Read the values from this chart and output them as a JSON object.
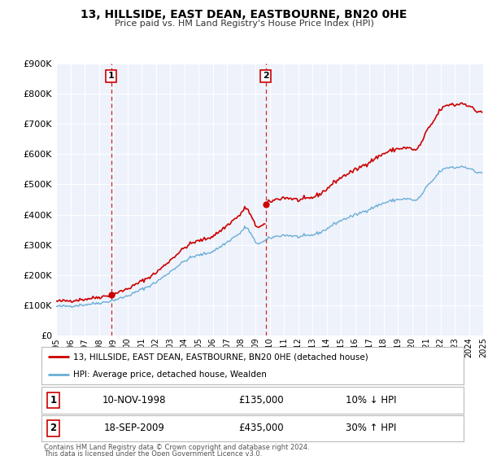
{
  "title": "13, HILLSIDE, EAST DEAN, EASTBOURNE, BN20 0HE",
  "subtitle": "Price paid vs. HM Land Registry's House Price Index (HPI)",
  "legend_line1": "13, HILLSIDE, EAST DEAN, EASTBOURNE, BN20 0HE (detached house)",
  "legend_line2": "HPI: Average price, detached house, Wealden",
  "footnote1": "Contains HM Land Registry data © Crown copyright and database right 2024.",
  "footnote2": "This data is licensed under the Open Government Licence v3.0.",
  "marker1_date": "10-NOV-1998",
  "marker1_price": 135000,
  "marker1_label": "10% ↓ HPI",
  "marker1_x": 1998.86,
  "marker2_date": "18-SEP-2009",
  "marker2_price": 435000,
  "marker2_label": "30% ↑ HPI",
  "marker2_x": 2009.72,
  "hpi_color": "#6baed6",
  "price_color": "#cc0000",
  "plot_bg_color": "#eef2fb",
  "grid_color": "#ffffff",
  "ylim": [
    0,
    900000
  ],
  "xlim_start": 1995,
  "xlim_end": 2025,
  "yticks": [
    0,
    100000,
    200000,
    300000,
    400000,
    500000,
    600000,
    700000,
    800000,
    900000
  ],
  "ytick_labels": [
    "£0",
    "£100K",
    "£200K",
    "£300K",
    "£400K",
    "£500K",
    "£600K",
    "£700K",
    "£800K",
    "£900K"
  ],
  "xticks": [
    1995,
    1996,
    1997,
    1998,
    1999,
    2000,
    2001,
    2002,
    2003,
    2004,
    2005,
    2006,
    2007,
    2008,
    2009,
    2010,
    2011,
    2012,
    2013,
    2014,
    2015,
    2016,
    2017,
    2018,
    2019,
    2020,
    2021,
    2022,
    2023,
    2024,
    2025
  ]
}
